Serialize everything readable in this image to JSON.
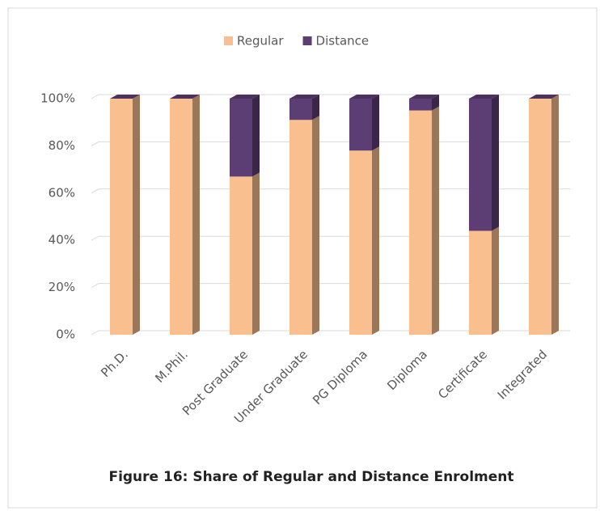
{
  "chart_data": {
    "type": "bar",
    "stacked": true,
    "title": "Figure 16: Share of Regular and Distance Enrolment",
    "categories": [
      "Ph.D.",
      "M.Phil.",
      "Post Graduate",
      "Under Graduate",
      "PG Diploma",
      "Diploma",
      "Certificate",
      "Integrated"
    ],
    "series": [
      {
        "name": "Regular",
        "color": "#fabf8f",
        "values": [
          100,
          100,
          67,
          91,
          78,
          95,
          44,
          100
        ]
      },
      {
        "name": "Distance",
        "color": "#5c3e74",
        "values": [
          0,
          0,
          33,
          9,
          22,
          5,
          56,
          0
        ]
      }
    ],
    "ylim": [
      0,
      100
    ],
    "yticks": [
      {
        "value": 0,
        "label": "0%"
      },
      {
        "value": 20,
        "label": "20%"
      },
      {
        "value": 40,
        "label": "40%"
      },
      {
        "value": 60,
        "label": "60%"
      },
      {
        "value": 80,
        "label": "80%"
      },
      {
        "value": 100,
        "label": "100%"
      }
    ],
    "grid": true,
    "legend": "top"
  }
}
